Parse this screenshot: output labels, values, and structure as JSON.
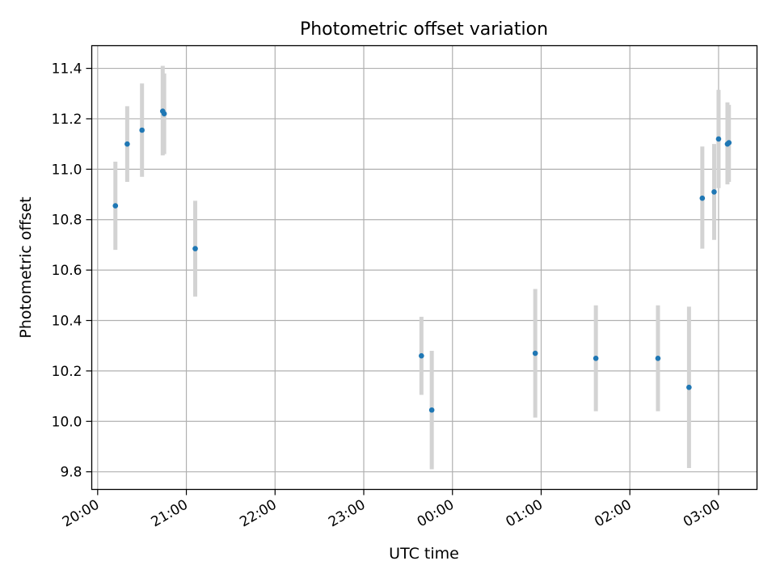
{
  "chart_data": {
    "type": "scatter",
    "title": "Photometric offset variation",
    "xlabel": "UTC time",
    "ylabel": "Photometric offset",
    "x_axis_type": "time",
    "xlim": [
      "19:56",
      "03:26"
    ],
    "ylim": [
      9.73,
      11.49
    ],
    "xticks": [
      "20:00",
      "21:00",
      "22:00",
      "23:00",
      "00:00",
      "01:00",
      "02:00",
      "03:00"
    ],
    "yticks": [
      "9.8",
      "10.0",
      "10.2",
      "10.4",
      "10.6",
      "10.8",
      "11.0",
      "11.2",
      "11.4"
    ],
    "grid": true,
    "legend": "none",
    "points": [
      {
        "x": "20:12",
        "y": 10.855,
        "err_low": 10.68,
        "err_high": 11.03
      },
      {
        "x": "20:20",
        "y": 11.1,
        "err_low": 10.95,
        "err_high": 11.25
      },
      {
        "x": "20:30",
        "y": 11.155,
        "err_low": 10.97,
        "err_high": 11.34
      },
      {
        "x": "20:44",
        "y": 11.23,
        "err_low": 11.055,
        "err_high": 11.41
      },
      {
        "x": "20:45",
        "y": 11.22,
        "err_low": 11.06,
        "err_high": 11.38
      },
      {
        "x": "21:06",
        "y": 10.685,
        "err_low": 10.495,
        "err_high": 10.875
      },
      {
        "x": "23:39",
        "y": 10.26,
        "err_low": 10.105,
        "err_high": 10.415
      },
      {
        "x": "23:46",
        "y": 10.045,
        "err_low": 9.81,
        "err_high": 10.28
      },
      {
        "x": "00:56",
        "y": 10.27,
        "err_low": 10.015,
        "err_high": 10.525
      },
      {
        "x": "01:37",
        "y": 10.25,
        "err_low": 10.04,
        "err_high": 10.46
      },
      {
        "x": "02:19",
        "y": 10.25,
        "err_low": 10.04,
        "err_high": 10.46
      },
      {
        "x": "02:40",
        "y": 10.135,
        "err_low": 9.815,
        "err_high": 10.455
      },
      {
        "x": "02:49",
        "y": 10.885,
        "err_low": 10.685,
        "err_high": 11.09
      },
      {
        "x": "02:57",
        "y": 10.91,
        "err_low": 10.72,
        "err_high": 11.1
      },
      {
        "x": "03:00",
        "y": 11.12,
        "err_low": 10.925,
        "err_high": 11.315
      },
      {
        "x": "03:06",
        "y": 11.1,
        "err_low": 10.94,
        "err_high": 11.265
      },
      {
        "x": "03:07",
        "y": 11.105,
        "err_low": 10.95,
        "err_high": 11.255
      }
    ],
    "colors": {
      "marker": "#1f77b4",
      "errorbar": "#d3d3d3",
      "grid": "#b0b0b0",
      "axes": "#000000"
    }
  }
}
